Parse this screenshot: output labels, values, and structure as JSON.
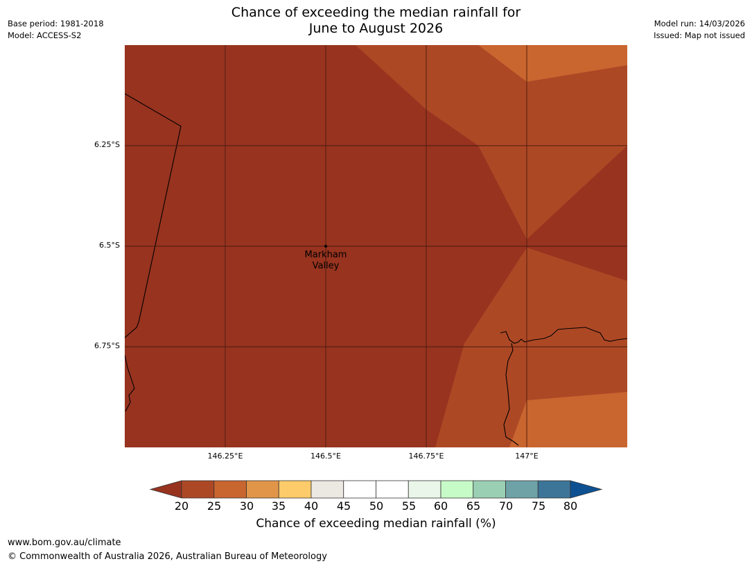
{
  "header": {
    "title_line1": "Chance of exceeding the median rainfall for",
    "title_line2": "June to August 2026",
    "base_period": "Base period: 1981-2018",
    "model": "Model: ACCESS-S2",
    "model_run": "Model run: 14/03/2026",
    "issued": "Issued: Map not issued"
  },
  "map": {
    "lat_labels": [
      "6.25°S",
      "6.5°S",
      "6.75°S"
    ],
    "lon_labels": [
      "146.25°E",
      "146.5°E",
      "146.75°E",
      "147°E"
    ],
    "place": {
      "name_line1": "Markham",
      "name_line2": "Valley",
      "lat": -6.5,
      "lon": 146.5
    }
  },
  "colorbar": {
    "ticks": [
      "20",
      "25",
      "30",
      "35",
      "40",
      "45",
      "50",
      "55",
      "60",
      "65",
      "70",
      "75",
      "80"
    ],
    "colors": [
      "#ad4825",
      "#c9652f",
      "#e19548",
      "#fecb6a",
      "#ece9e3",
      "#ffffff",
      "#ffffff",
      "#eaf6e9",
      "#c6fac6",
      "#9bcfb4",
      "#6ea2a6",
      "#3d7598"
    ],
    "under_color": "#97331f",
    "over_color": "#0d5193",
    "label": "Chance of exceeding median rainfall (%)"
  },
  "footer": {
    "url": "www.bom.gov.au/climate",
    "copyright": "© Commonwealth of Australia 2026, Australian Bureau of Meteorology"
  }
}
